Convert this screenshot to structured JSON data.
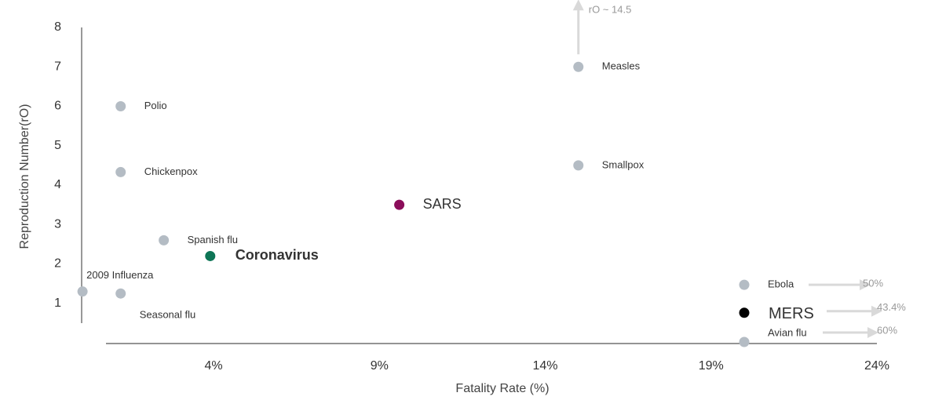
{
  "chart_data": {
    "type": "scatter",
    "x_label": "Fatality Rate (%)",
    "y_label": "Reproduction Number(rO)",
    "xlim": [
      0,
      24
    ],
    "ylim": [
      0,
      8
    ],
    "xticks": [
      {
        "value": 4,
        "label": "4%"
      },
      {
        "value": 9,
        "label": "9%"
      },
      {
        "value": 14,
        "label": "14%"
      },
      {
        "value": 19,
        "label": "19%"
      },
      {
        "value": 24,
        "label": "24%"
      }
    ],
    "yticks": [
      1,
      2,
      3,
      4,
      5,
      6,
      7,
      8
    ],
    "points": [
      {
        "label": "Measles",
        "x": 15,
        "y": 7,
        "color": "#b4bcc4",
        "annotation": "rO ~ 14.5"
      },
      {
        "label": "Polio",
        "x": 1.2,
        "y": 6,
        "color": "#b4bcc4"
      },
      {
        "label": "Smallpox",
        "x": 15,
        "y": 4.5,
        "color": "#b4bcc4"
      },
      {
        "label": "Chickenpox",
        "x": 1.2,
        "y": 4.33,
        "color": "#b4bcc4"
      },
      {
        "label": "SARS",
        "x": 9.6,
        "y": 3.5,
        "color": "#8b0d5a"
      },
      {
        "label": "Spanish flu",
        "x": 2.5,
        "y": 2.6,
        "color": "#b4bcc4"
      },
      {
        "label": "Coronavirus",
        "x": 3.9,
        "y": 2.2,
        "color": "#0e7556"
      },
      {
        "label": "2009 Influenza",
        "x": 0.05,
        "y": 1.3,
        "color": "#b4bcc4"
      },
      {
        "label": "Seasonal flu",
        "x": 1.2,
        "y": 1.25,
        "color": "#b4bcc4"
      },
      {
        "label": "Ebola",
        "x": 20,
        "y": 1.47,
        "color": "#b4bcc4",
        "annotation": "50%"
      },
      {
        "label": "MERS",
        "x": 20,
        "y": 0.76,
        "color": "#000000",
        "annotation": "43.4%"
      },
      {
        "label": "Avian flu",
        "x": 20,
        "y": 0.02,
        "color": "#b4bcc4",
        "annotation": "60%"
      }
    ]
  }
}
